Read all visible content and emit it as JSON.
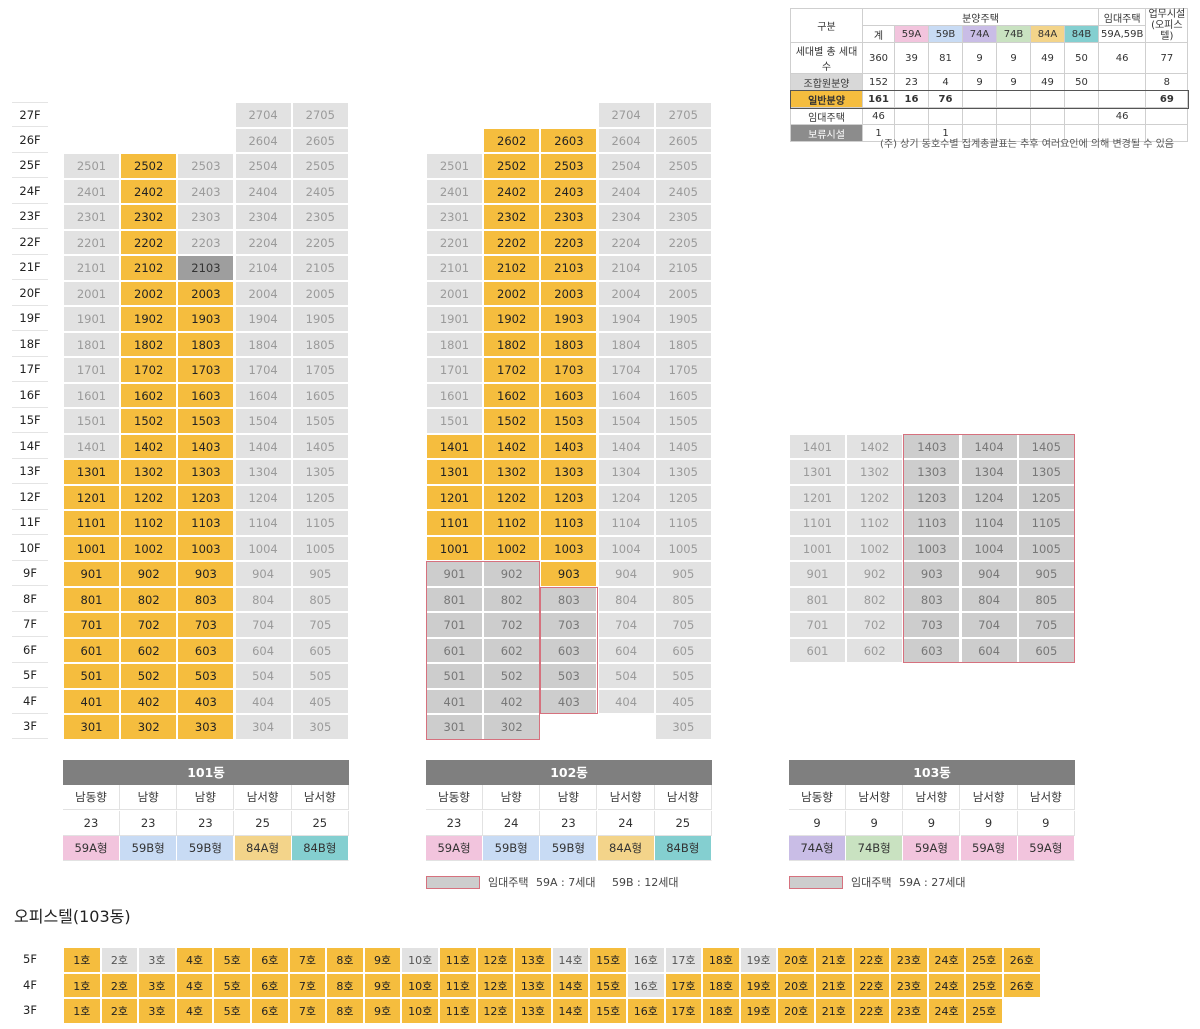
{
  "summary_table": {
    "col_gubun": "구분",
    "col_bunyang": "분양주택",
    "col_imdae": "임대주택",
    "col_upmu": "업무시설\n(오피스텔)",
    "sub_headers": [
      "계",
      "59A",
      "59B",
      "74A",
      "74B",
      "84A",
      "84B",
      "59A,59B"
    ],
    "rows": [
      {
        "label": "세대별 총 세대수",
        "vals": [
          "360",
          "39",
          "81",
          "9",
          "9",
          "49",
          "50",
          "46",
          "77"
        ]
      },
      {
        "label": "조합원분양",
        "vals": [
          "152",
          "23",
          "4",
          "9",
          "9",
          "49",
          "50",
          "",
          "8"
        ]
      },
      {
        "label": "일반분양",
        "vals": [
          "161",
          "16",
          "76",
          "",
          "",
          "",
          "",
          "",
          "69"
        ]
      },
      {
        "label": "임대주택",
        "vals": [
          "46",
          "",
          "",
          "",
          "",
          "",
          "",
          "46",
          ""
        ]
      },
      {
        "label": "보류시설",
        "vals": [
          "1",
          "",
          "1",
          "",
          "",
          "",
          "",
          "",
          ""
        ]
      }
    ],
    "colors": {
      "59A": "#f2c4dd",
      "59B": "#c8dbf4",
      "74A": "#c9bde6",
      "74B": "#c9e2c1",
      "84A": "#f3d48a",
      "84B": "#84cfd0",
      "general": "#f5bd3e",
      "member": "#d8d8d8",
      "reserve": "#8c8c8c"
    }
  },
  "note": "(주) 상기 동호수별 집계총괄표는 추후 여러요인에 의해 변경될 수 있음",
  "floors": [
    "27F",
    "26F",
    "25F",
    "24F",
    "23F",
    "22F",
    "21F",
    "20F",
    "19F",
    "18F",
    "17F",
    "16F",
    "15F",
    "14F",
    "13F",
    "12F",
    "11F",
    "10F",
    "9F",
    "8F",
    "7F",
    "6F",
    "5F",
    "4F",
    "3F"
  ],
  "buildings": [
    {
      "name": "101동",
      "directions": [
        "남동향",
        "남향",
        "남향",
        "남서향",
        "남서향"
      ],
      "counts": [
        "23",
        "23",
        "23",
        "25",
        "25"
      ],
      "types": [
        "59A형",
        "59B형",
        "59B형",
        "84A형",
        "84B형"
      ],
      "type_colors": [
        "#f2c4dd",
        "#c8dbf4",
        "#c8dbf4",
        "#f3d48a",
        "#84cfd0"
      ]
    },
    {
      "name": "102동",
      "directions": [
        "남동향",
        "남향",
        "남향",
        "남서향",
        "남서향"
      ],
      "counts": [
        "23",
        "24",
        "23",
        "24",
        "25"
      ],
      "types": [
        "59A형",
        "59B형",
        "59B형",
        "84A형",
        "84B형"
      ],
      "type_colors": [
        "#f2c4dd",
        "#c8dbf4",
        "#c8dbf4",
        "#f3d48a",
        "#84cfd0"
      ],
      "legend": {
        "label": "임대주택",
        "a": "59A : 7세대",
        "b": "59B : 12세대"
      }
    },
    {
      "name": "103동",
      "directions": [
        "남동향",
        "남서향",
        "남서향",
        "남서향",
        "남서향"
      ],
      "counts": [
        "9",
        "9",
        "9",
        "9",
        "9"
      ],
      "types": [
        "74A형",
        "74B형",
        "59A형",
        "59A형",
        "59A형"
      ],
      "type_colors": [
        "#c9bde6",
        "#c9e2c1",
        "#f2c4dd",
        "#f2c4dd",
        "#f2c4dd"
      ],
      "legend": {
        "label": "임대주택",
        "a": "59A : 27세대",
        "b": ""
      }
    }
  ],
  "officetel": {
    "title": "오피스텔(103동)",
    "floors": [
      "5F",
      "4F",
      "3F"
    ],
    "rows": [
      {
        "units": [
          "1호",
          "2호",
          "3호",
          "4호",
          "5호",
          "6호",
          "7호",
          "8호",
          "9호",
          "10호",
          "11호",
          "12호",
          "13호",
          "14호",
          "15호",
          "16호",
          "17호",
          "18호",
          "19호",
          "20호",
          "21호",
          "22호",
          "23호",
          "24호",
          "25호",
          "26호"
        ],
        "grey": [
          2,
          3,
          10,
          14,
          16,
          17,
          19
        ]
      },
      {
        "units": [
          "1호",
          "2호",
          "3호",
          "4호",
          "5호",
          "6호",
          "7호",
          "8호",
          "9호",
          "10호",
          "11호",
          "12호",
          "13호",
          "14호",
          "15호",
          "16호",
          "17호",
          "18호",
          "19호",
          "20호",
          "21호",
          "22호",
          "23호",
          "24호",
          "25호",
          "26호"
        ],
        "grey": [
          16
        ]
      },
      {
        "units": [
          "1호",
          "2호",
          "3호",
          "4호",
          "5호",
          "6호",
          "7호",
          "8호",
          "9호",
          "10호",
          "11호",
          "12호",
          "13호",
          "14호",
          "15호",
          "16호",
          "17호",
          "18호",
          "19호",
          "20호",
          "21호",
          "22호",
          "23호",
          "24호",
          "25호"
        ],
        "grey": []
      }
    ]
  }
}
